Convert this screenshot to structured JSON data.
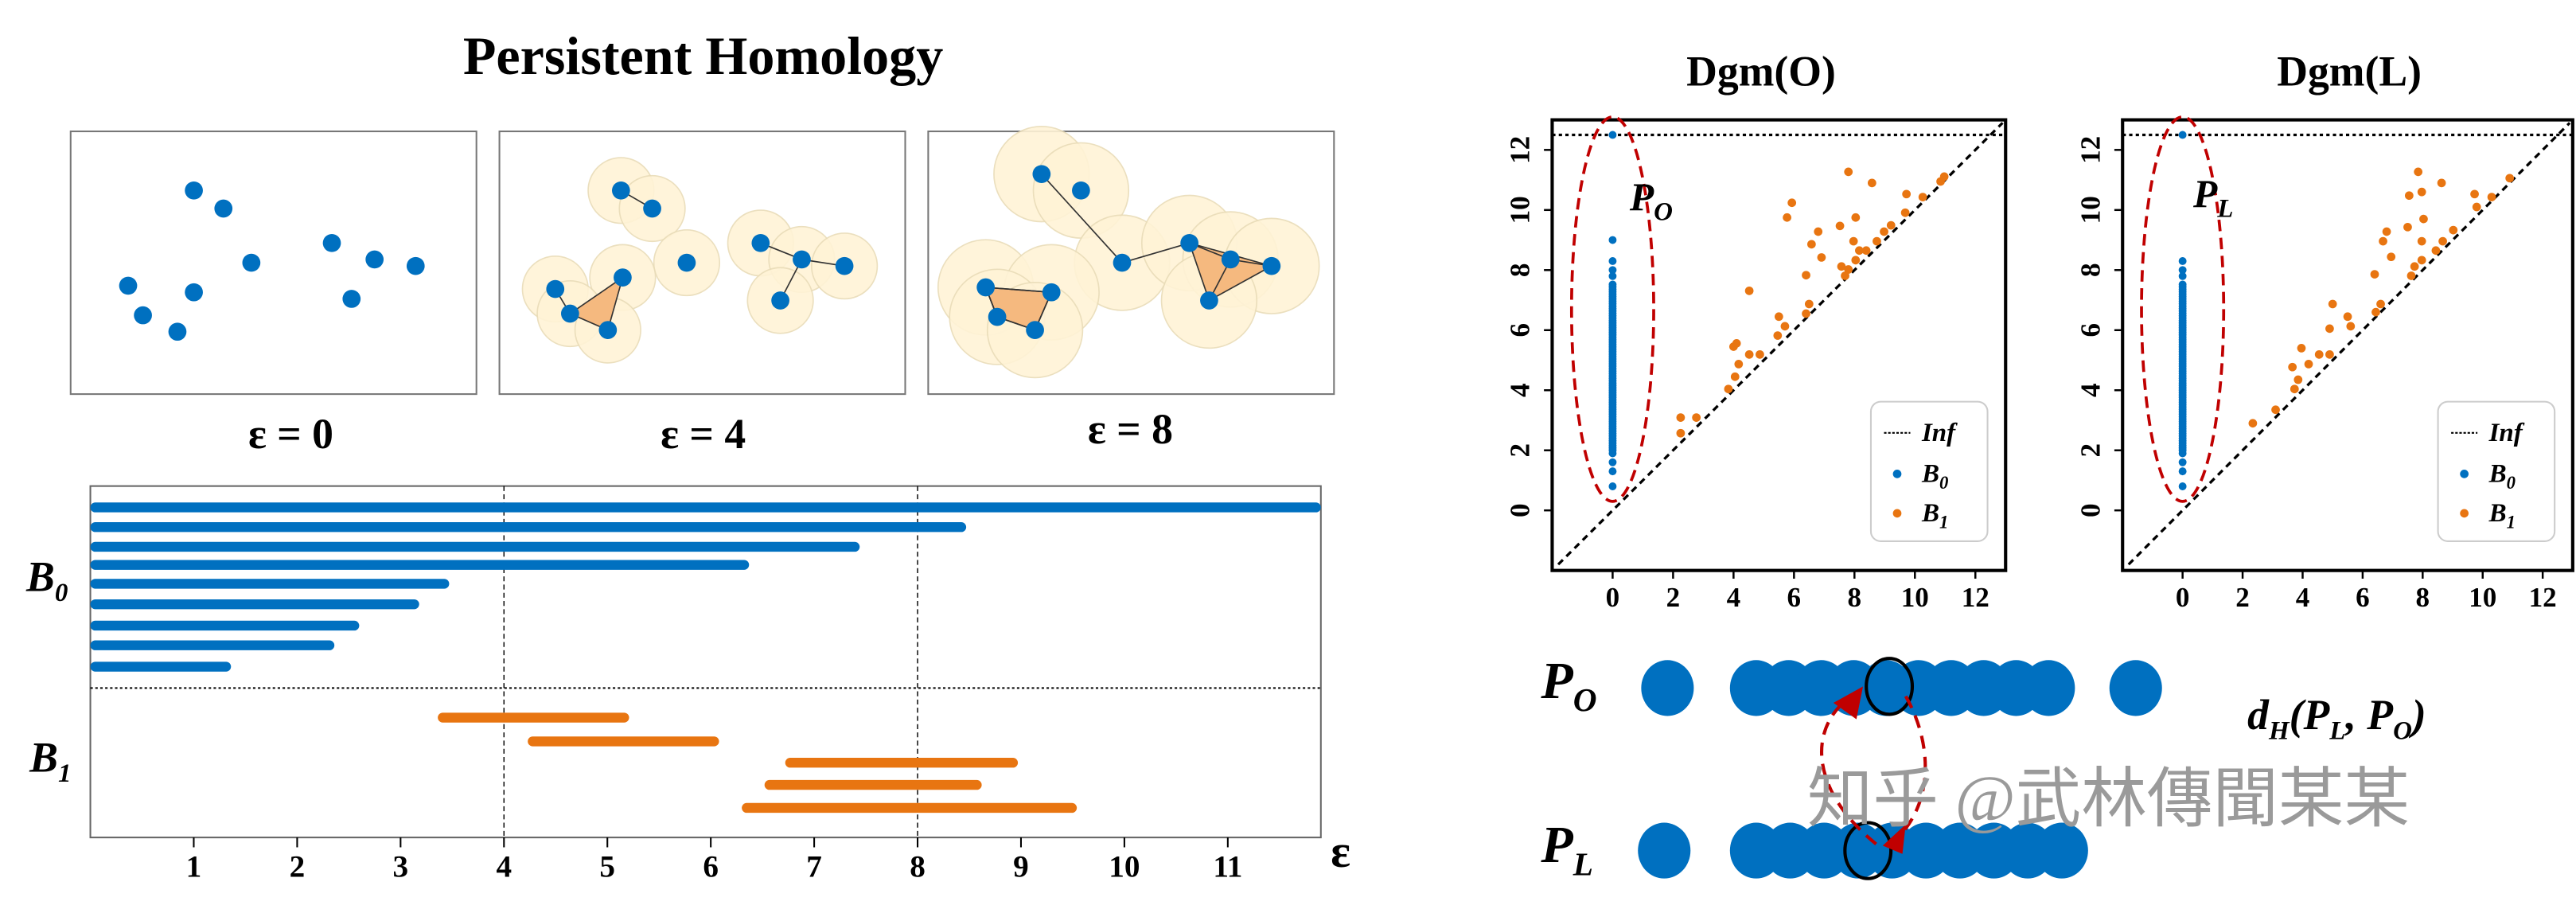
{
  "left": {
    "title": "Persistent Homology",
    "panels": [
      {
        "label": "ɛ = 0"
      },
      {
        "label": "ɛ = 4"
      },
      {
        "label": "ɛ = 8"
      }
    ],
    "barcode_labels": {
      "b0": "B",
      "b0_sub": "0",
      "b1": "B",
      "b1_sub": "1",
      "xaxis": "ɛ"
    }
  },
  "right": {
    "diagram_titles": [
      "Dgm(O)",
      "Dgm(L)"
    ],
    "annot_left": {
      "main": "P",
      "sub": "O"
    },
    "annot_right": {
      "main": "P",
      "sub": "L"
    },
    "legend": {
      "inf": "Inf",
      "b0": "B",
      "b0_sub": "0",
      "b1": "B",
      "b1_sub": "1"
    },
    "row_o": {
      "main": "P",
      "sub": "O"
    },
    "row_l": {
      "main": "P",
      "sub": "L"
    },
    "distance_label": "d",
    "distance_sub": "H",
    "distance_args": "(P",
    "distance_arg1_sub": "L",
    "distance_arg2": ", P",
    "distance_arg2_sub": "O",
    "distance_close": ")",
    "watermark": "知乎 @武林傳聞某某"
  },
  "colors": {
    "b0": "#0070C0",
    "b1": "#E87511",
    "ellipse": "#C00000",
    "ball": "#FFF3D6",
    "simplex": "#F5B97F"
  },
  "chart_data": [
    {
      "type": "barcode",
      "xlim": [
        0,
        11.9
      ],
      "xticks": [
        1,
        2,
        3,
        4,
        5,
        6,
        7,
        8,
        9,
        10,
        11
      ],
      "xlabel": "ɛ",
      "reference_lines": [
        4,
        8
      ],
      "series": [
        {
          "name": "B0",
          "intervals": [
            [
              0,
              11.9
            ],
            [
              0,
              8.47
            ],
            [
              0,
              7.44
            ],
            [
              0,
              6.37
            ],
            [
              0,
              3.47
            ],
            [
              0,
              3.18
            ],
            [
              0,
              2.6
            ],
            [
              0,
              2.36
            ],
            [
              0,
              1.36
            ]
          ]
        },
        {
          "name": "B1",
          "intervals": [
            [
              3.36,
              5.21
            ],
            [
              4.23,
              6.08
            ],
            [
              6.72,
              8.97
            ],
            [
              6.52,
              8.62
            ],
            [
              6.3,
              9.54
            ]
          ]
        }
      ]
    },
    {
      "type": "scatter",
      "title": "Dgm(O)",
      "xlim": [
        -2,
        13
      ],
      "ylim": [
        -2,
        13
      ],
      "xticks": [
        0,
        2,
        4,
        6,
        8,
        10,
        12
      ],
      "yticks": [
        0,
        2,
        4,
        6,
        8,
        10,
        12
      ],
      "inf_level": 12.5,
      "diagonal": true,
      "legend": "bottom-right",
      "b0_deaths": [
        0.8,
        1.3,
        1.6,
        1.9,
        7.8,
        8.0,
        8.3,
        9.0,
        12.5
      ],
      "b0_dense_range": [
        2.0,
        7.6
      ],
      "b1_points": [
        [
          2.25,
          3.09
        ],
        [
          2.77,
          3.09
        ],
        [
          2.25,
          2.57
        ],
        [
          4.52,
          7.31
        ],
        [
          3.83,
          4.04
        ],
        [
          4.05,
          4.45
        ],
        [
          4.17,
          4.87
        ],
        [
          4.0,
          5.45
        ],
        [
          4.1,
          5.56
        ],
        [
          4.52,
          5.19
        ],
        [
          4.87,
          5.19
        ],
        [
          5.46,
          5.82
        ],
        [
          5.7,
          6.13
        ],
        [
          5.5,
          6.45
        ],
        [
          6.4,
          6.55
        ],
        [
          6.5,
          6.87
        ],
        [
          6.4,
          7.83
        ],
        [
          6.91,
          8.42
        ],
        [
          6.58,
          8.86
        ],
        [
          6.8,
          9.28
        ],
        [
          5.77,
          9.75
        ],
        [
          5.93,
          10.24
        ],
        [
          7.52,
          9.47
        ],
        [
          7.8,
          11.27
        ],
        [
          8.58,
          10.9
        ],
        [
          7.57,
          8.12
        ],
        [
          7.8,
          8.02
        ],
        [
          8.04,
          8.33
        ],
        [
          8.16,
          8.65
        ],
        [
          7.97,
          8.96
        ],
        [
          8.04,
          9.75
        ],
        [
          8.39,
          8.65
        ],
        [
          8.74,
          8.96
        ],
        [
          8.98,
          9.28
        ],
        [
          9.21,
          9.49
        ],
        [
          9.68,
          9.91
        ],
        [
          9.72,
          10.53
        ],
        [
          10.26,
          10.43
        ],
        [
          10.85,
          10.95
        ],
        [
          10.97,
          11.11
        ],
        [
          7.69,
          7.81
        ]
      ]
    },
    {
      "type": "scatter",
      "title": "Dgm(L)",
      "xlim": [
        -2,
        13
      ],
      "ylim": [
        -2,
        13
      ],
      "xticks": [
        0,
        2,
        4,
        6,
        8,
        10,
        12
      ],
      "yticks": [
        0,
        2,
        4,
        6,
        8,
        10,
        12
      ],
      "inf_level": 12.5,
      "diagonal": true,
      "legend": "bottom-right",
      "b0_deaths": [
        0.8,
        1.3,
        1.6,
        1.9,
        7.8,
        8.0,
        8.3,
        12.5
      ],
      "b0_dense_range": [
        2.0,
        7.6
      ],
      "b1_points": [
        [
          2.34,
          2.9
        ],
        [
          3.1,
          3.35
        ],
        [
          3.73,
          4.04
        ],
        [
          3.85,
          4.35
        ],
        [
          3.66,
          4.77
        ],
        [
          3.96,
          5.4
        ],
        [
          4.2,
          4.87
        ],
        [
          4.55,
          5.19
        ],
        [
          4.9,
          5.19
        ],
        [
          4.9,
          6.05
        ],
        [
          5.0,
          6.87
        ],
        [
          5.5,
          6.45
        ],
        [
          5.6,
          6.13
        ],
        [
          6.4,
          7.86
        ],
        [
          6.44,
          6.6
        ],
        [
          6.6,
          6.87
        ],
        [
          6.95,
          8.44
        ],
        [
          6.68,
          8.96
        ],
        [
          6.8,
          9.28
        ],
        [
          7.5,
          9.43
        ],
        [
          7.55,
          10.48
        ],
        [
          7.85,
          11.27
        ],
        [
          7.97,
          10.6
        ],
        [
          8.63,
          10.9
        ],
        [
          8.03,
          9.7
        ],
        [
          7.97,
          8.96
        ],
        [
          7.73,
          8.12
        ],
        [
          7.97,
          8.33
        ],
        [
          8.44,
          8.65
        ],
        [
          8.67,
          8.96
        ],
        [
          9.02,
          9.33
        ],
        [
          9.73,
          10.53
        ],
        [
          9.8,
          10.1
        ],
        [
          10.3,
          10.43
        ],
        [
          10.9,
          11.06
        ],
        [
          7.62,
          7.81
        ]
      ]
    }
  ]
}
